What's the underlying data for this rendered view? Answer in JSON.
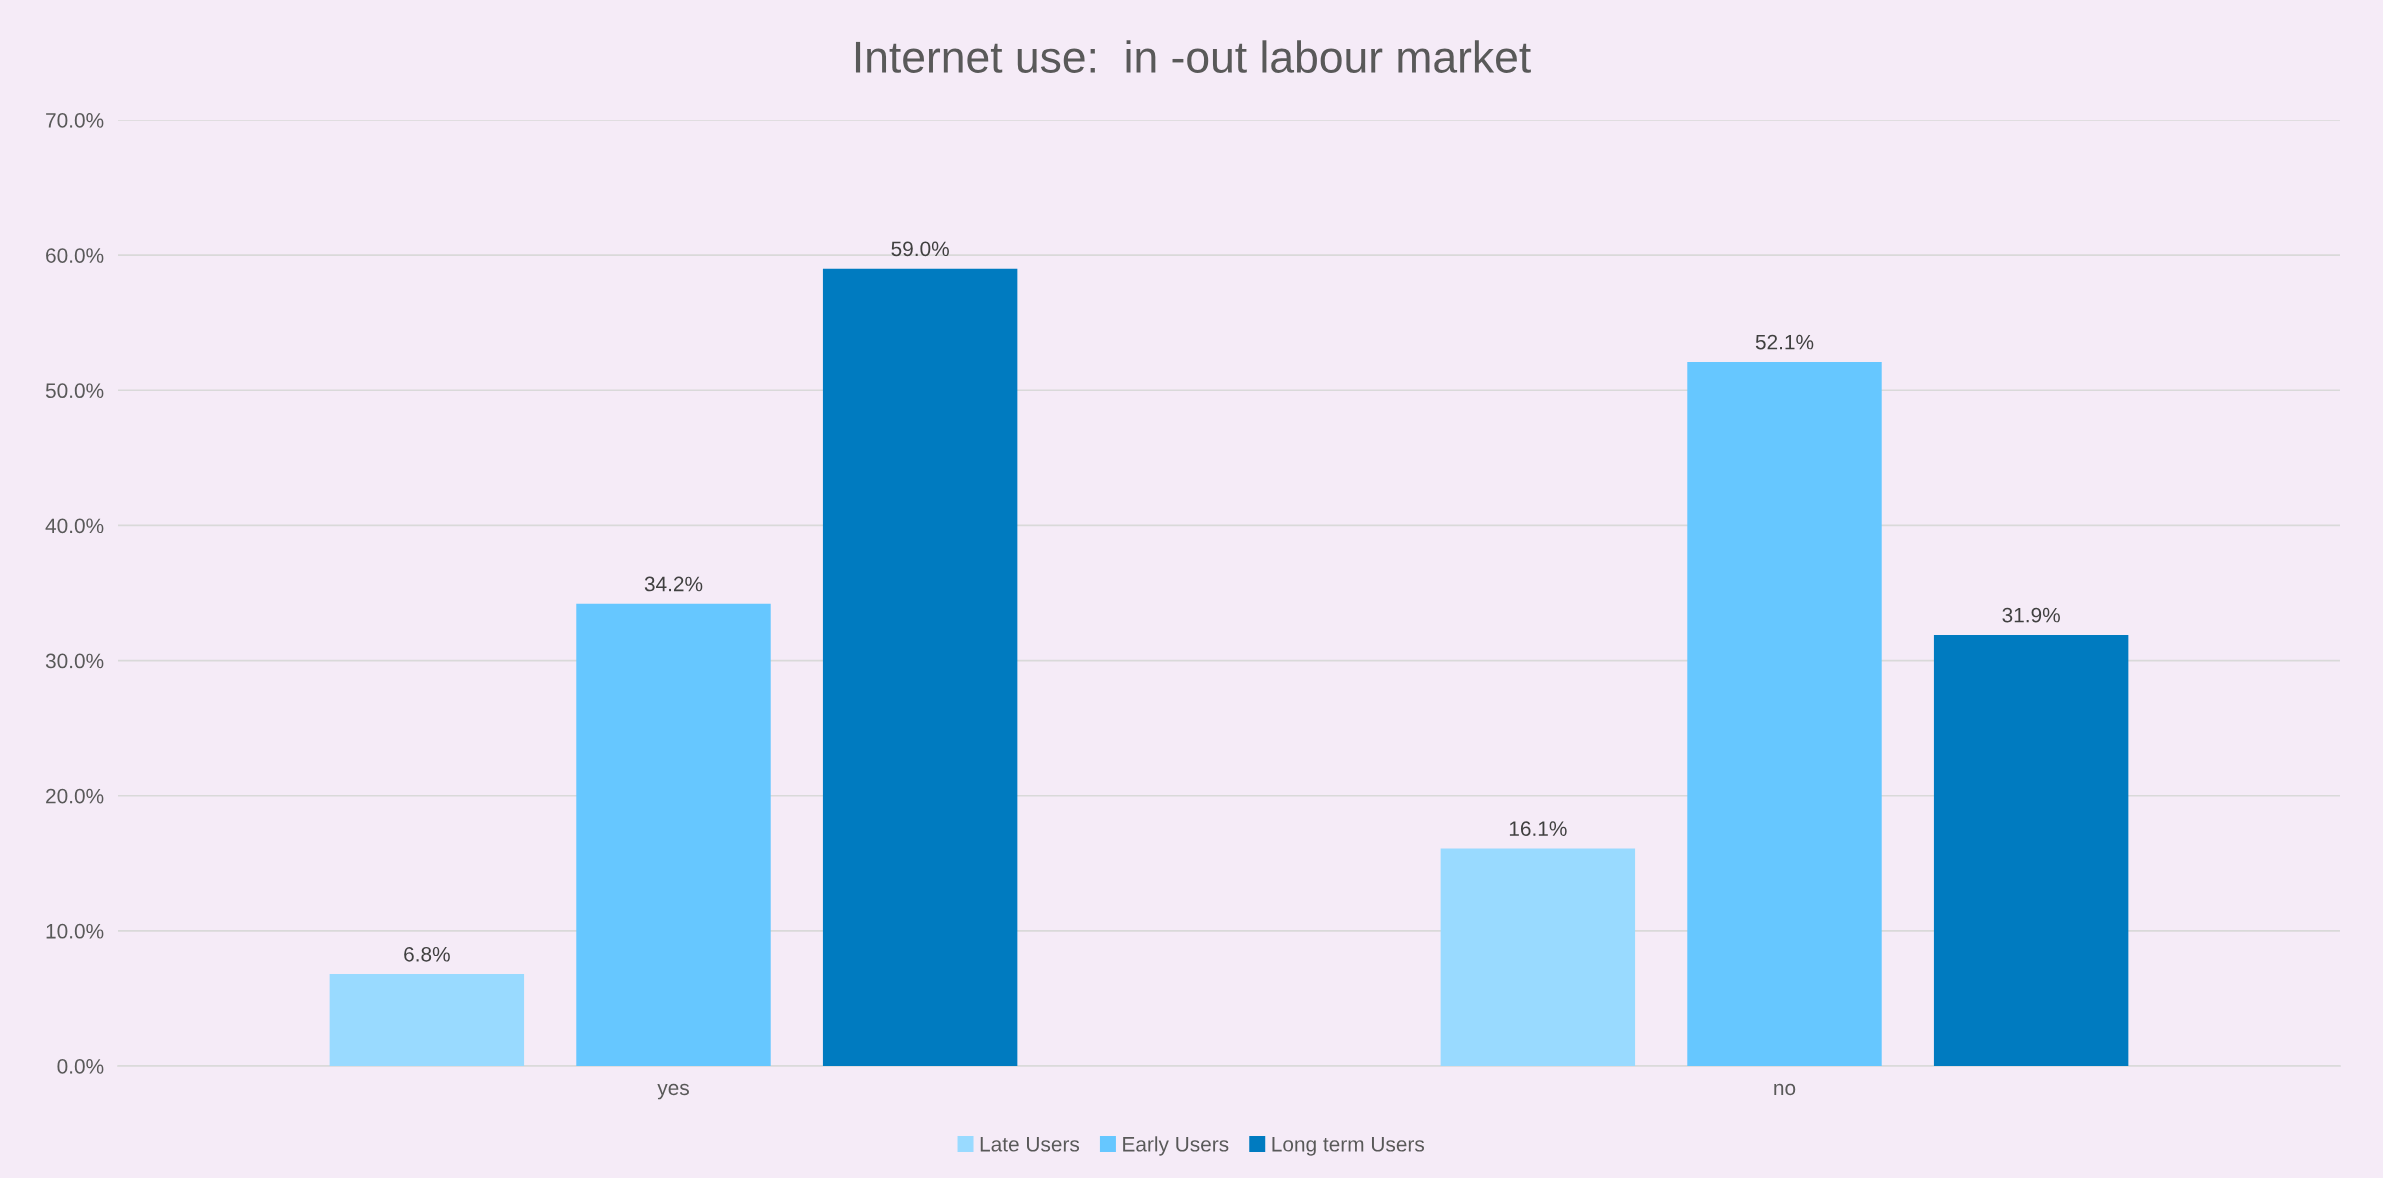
{
  "chart_data": {
    "type": "bar",
    "title": "Internet use:  in -out labour market",
    "categories": [
      "yes",
      "no"
    ],
    "series": [
      {
        "name": "Late Users",
        "color": "#99daff",
        "values": [
          6.8,
          16.1
        ],
        "value_labels": [
          "6.8%",
          "16.1%"
        ]
      },
      {
        "name": "Early Users",
        "color": "#66c7ff",
        "values": [
          34.2,
          52.1
        ],
        "value_labels": [
          "34.2%",
          "52.1%"
        ]
      },
      {
        "name": "Long term Users",
        "color": "#007bc0",
        "values": [
          59.0,
          31.9
        ],
        "value_labels": [
          "59.0%",
          "31.9%"
        ]
      }
    ],
    "ylim": [
      0,
      70
    ],
    "yticks": [
      {
        "value": 0,
        "label": "0.0%"
      },
      {
        "value": 10,
        "label": "10.0%"
      },
      {
        "value": 20,
        "label": "20.0%"
      },
      {
        "value": 30,
        "label": "30.0%"
      },
      {
        "value": 40,
        "label": "40.0%"
      },
      {
        "value": 50,
        "label": "50.0%"
      },
      {
        "value": 60,
        "label": "60.0%"
      },
      {
        "value": 70,
        "label": "70.0%"
      }
    ],
    "grid": "y",
    "legend": "bottom"
  }
}
